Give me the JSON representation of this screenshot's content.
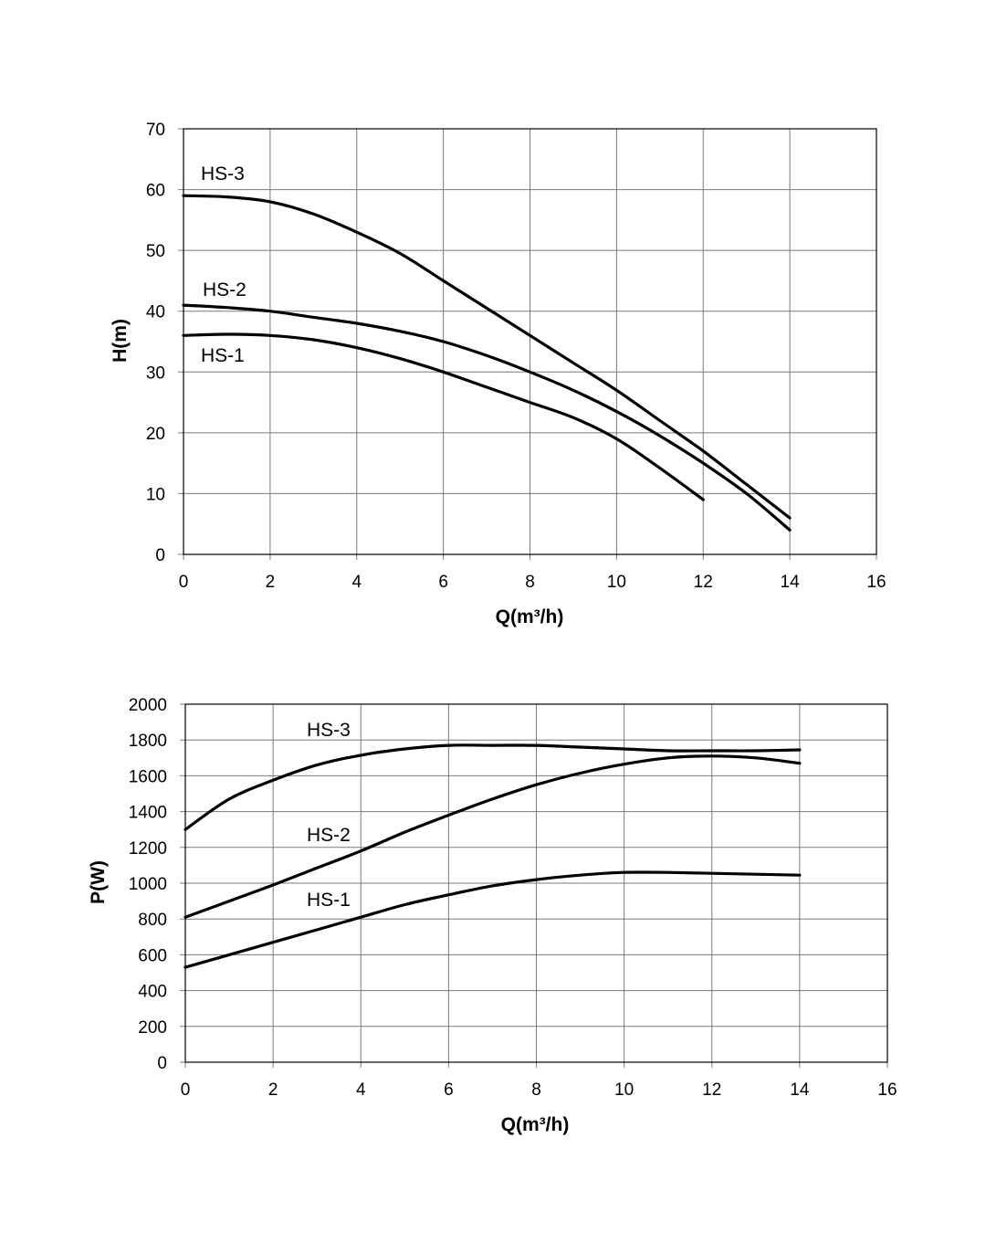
{
  "chart_data": [
    {
      "type": "line",
      "xlabel": "Q(m³/h)",
      "ylabel": "H(m)",
      "xlim": [
        0,
        16
      ],
      "ylim": [
        0,
        70
      ],
      "x_ticks": [
        0,
        2,
        4,
        6,
        8,
        10,
        12,
        14,
        16
      ],
      "y_ticks": [
        0,
        10,
        20,
        30,
        40,
        50,
        60,
        70
      ],
      "grid": true,
      "series": [
        {
          "name": "HS-3",
          "x": [
            0,
            1,
            2,
            3,
            4,
            5,
            6,
            7,
            8,
            9,
            10,
            11,
            12,
            13,
            14
          ],
          "values": [
            59,
            58.8,
            58,
            56,
            53,
            49.5,
            45,
            40.5,
            36,
            31.5,
            27,
            22,
            17,
            11.5,
            6
          ]
        },
        {
          "name": "HS-2",
          "x": [
            0,
            1,
            2,
            3,
            4,
            5,
            6,
            7,
            8,
            9,
            10,
            11,
            12,
            13,
            14
          ],
          "values": [
            41,
            40.6,
            40,
            39,
            38,
            36.7,
            35,
            32.7,
            30,
            27,
            23.5,
            19.5,
            15,
            10,
            4
          ]
        },
        {
          "name": "HS-1",
          "x": [
            0,
            1,
            2,
            3,
            4,
            5,
            6,
            7,
            8,
            9,
            10,
            11,
            12
          ],
          "values": [
            36,
            36.2,
            36,
            35.3,
            34,
            32.2,
            30,
            27.5,
            25,
            22.5,
            19,
            14.2,
            9
          ]
        }
      ]
    },
    {
      "type": "line",
      "xlabel": "Q(m³/h)",
      "ylabel": "P(W)",
      "xlim": [
        0,
        16
      ],
      "ylim": [
        0,
        2000
      ],
      "x_ticks": [
        0,
        2,
        4,
        6,
        8,
        10,
        12,
        14,
        16
      ],
      "y_ticks": [
        0,
        200,
        400,
        600,
        800,
        1000,
        1200,
        1400,
        1600,
        1800,
        2000
      ],
      "grid": true,
      "series": [
        {
          "name": "HS-3",
          "x": [
            0,
            1,
            2,
            3,
            4,
            5,
            6,
            7,
            8,
            9,
            10,
            11,
            12,
            13,
            14
          ],
          "values": [
            1300,
            1470,
            1575,
            1660,
            1715,
            1750,
            1770,
            1770,
            1770,
            1760,
            1750,
            1740,
            1740,
            1740,
            1745
          ]
        },
        {
          "name": "HS-2",
          "x": [
            0,
            1,
            2,
            3,
            4,
            5,
            6,
            7,
            8,
            9,
            10,
            11,
            12,
            13,
            14
          ],
          "values": [
            810,
            900,
            990,
            1085,
            1180,
            1285,
            1380,
            1470,
            1550,
            1615,
            1665,
            1700,
            1710,
            1700,
            1670
          ]
        },
        {
          "name": "HS-1",
          "x": [
            0,
            1,
            2,
            3,
            4,
            5,
            6,
            7,
            8,
            9,
            10,
            11,
            12,
            13,
            14
          ],
          "values": [
            530,
            600,
            670,
            740,
            810,
            880,
            935,
            985,
            1020,
            1045,
            1060,
            1060,
            1055,
            1050,
            1045
          ]
        }
      ]
    }
  ],
  "labels": {
    "top_x_axis": "Q(m³/h)",
    "top_y_axis": "H(m)",
    "bottom_x_axis": "Q(m³/h)",
    "bottom_y_axis": "P(W)",
    "top_series": [
      "HS-3",
      "HS-2",
      "HS-1"
    ],
    "bottom_series": [
      "HS-3",
      "HS-2",
      "HS-1"
    ]
  }
}
